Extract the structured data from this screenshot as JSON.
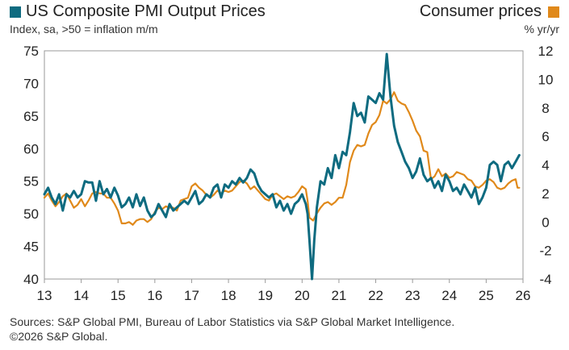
{
  "chart_data": {
    "type": "line",
    "title": "US Composite PMI Output Prices",
    "legend": [
      {
        "name": "US Composite PMI Output Prices",
        "color": "#0e6b80",
        "position": "top-left"
      },
      {
        "name": "Consumer prices",
        "color": "#e0891a",
        "position": "top-right"
      }
    ],
    "ylabel_left": "Index, sa, >50 = inflation m/m",
    "ylabel_right": "% yr/yr",
    "y_left": {
      "min": 40,
      "max": 75,
      "ticks": [
        40,
        45,
        50,
        55,
        60,
        65,
        70,
        75
      ]
    },
    "y_right": {
      "min": -4,
      "max": 12,
      "ticks": [
        -4,
        -2,
        0,
        2,
        4,
        6,
        8,
        10,
        12
      ]
    },
    "x": {
      "min": 13,
      "max": 26,
      "ticks": [
        "13",
        "14",
        "15",
        "16",
        "17",
        "18",
        "19",
        "20",
        "21",
        "22",
        "23",
        "24",
        "25",
        "26"
      ]
    },
    "series": [
      {
        "name": "US Composite PMI Output Prices",
        "axis": "left",
        "color": "#0e6b80",
        "points": [
          [
            13.0,
            53.0
          ],
          [
            13.1,
            54.0
          ],
          [
            13.2,
            52.5
          ],
          [
            13.3,
            51.5
          ],
          [
            13.4,
            53.0
          ],
          [
            13.5,
            50.5
          ],
          [
            13.6,
            53.0
          ],
          [
            13.7,
            52.5
          ],
          [
            13.8,
            53.5
          ],
          [
            13.9,
            52.5
          ],
          [
            14.0,
            53.0
          ],
          [
            14.1,
            55.0
          ],
          [
            14.2,
            54.8
          ],
          [
            14.3,
            54.8
          ],
          [
            14.4,
            52.0
          ],
          [
            14.5,
            55.0
          ],
          [
            14.6,
            53.0
          ],
          [
            14.7,
            53.8
          ],
          [
            14.8,
            52.5
          ],
          [
            14.9,
            54.0
          ],
          [
            15.0,
            52.8
          ],
          [
            15.1,
            51.0
          ],
          [
            15.2,
            51.5
          ],
          [
            15.3,
            52.5
          ],
          [
            15.4,
            51.0
          ],
          [
            15.5,
            53.0
          ],
          [
            15.6,
            51.2
          ],
          [
            15.7,
            52.5
          ],
          [
            15.8,
            50.5
          ],
          [
            15.9,
            49.5
          ],
          [
            16.0,
            50.0
          ],
          [
            16.1,
            51.5
          ],
          [
            16.2,
            50.5
          ],
          [
            16.3,
            49.5
          ],
          [
            16.4,
            51.5
          ],
          [
            16.5,
            50.5
          ],
          [
            16.6,
            51.0
          ],
          [
            16.7,
            51.5
          ],
          [
            16.8,
            52.0
          ],
          [
            16.9,
            51.5
          ],
          [
            17.0,
            52.5
          ],
          [
            17.1,
            53.5
          ],
          [
            17.2,
            51.5
          ],
          [
            17.3,
            52.0
          ],
          [
            17.4,
            53.0
          ],
          [
            17.5,
            52.5
          ],
          [
            17.6,
            54.0
          ],
          [
            17.7,
            54.5
          ],
          [
            17.8,
            52.5
          ],
          [
            17.9,
            54.5
          ],
          [
            18.0,
            54.0
          ],
          [
            18.1,
            55.0
          ],
          [
            18.2,
            54.5
          ],
          [
            18.3,
            55.5
          ],
          [
            18.4,
            54.8
          ],
          [
            18.5,
            55.5
          ],
          [
            18.6,
            56.8
          ],
          [
            18.7,
            56.2
          ],
          [
            18.8,
            54.5
          ],
          [
            18.9,
            53.5
          ],
          [
            19.0,
            53.0
          ],
          [
            19.1,
            52.5
          ],
          [
            19.2,
            53.0
          ],
          [
            19.3,
            51.0
          ],
          [
            19.4,
            52.0
          ],
          [
            19.5,
            50.5
          ],
          [
            19.6,
            51.5
          ],
          [
            19.7,
            50.0
          ],
          [
            19.8,
            51.5
          ],
          [
            19.9,
            52.0
          ],
          [
            20.0,
            53.0
          ],
          [
            20.1,
            51.5
          ],
          [
            20.15,
            50.0
          ],
          [
            20.2,
            46.0
          ],
          [
            20.27,
            40.0
          ],
          [
            20.33,
            46.0
          ],
          [
            20.4,
            51.0
          ],
          [
            20.5,
            55.0
          ],
          [
            20.6,
            54.5
          ],
          [
            20.7,
            57.0
          ],
          [
            20.8,
            55.5
          ],
          [
            20.9,
            59.0
          ],
          [
            21.0,
            57.0
          ],
          [
            21.1,
            59.5
          ],
          [
            21.2,
            59.0
          ],
          [
            21.3,
            62.5
          ],
          [
            21.4,
            67.0
          ],
          [
            21.5,
            65.0
          ],
          [
            21.6,
            65.5
          ],
          [
            21.7,
            64.0
          ],
          [
            21.8,
            68.0
          ],
          [
            21.9,
            67.5
          ],
          [
            22.0,
            67.0
          ],
          [
            22.1,
            68.5
          ],
          [
            22.2,
            67.5
          ],
          [
            22.3,
            74.5
          ],
          [
            22.4,
            68.0
          ],
          [
            22.5,
            63.5
          ],
          [
            22.6,
            61.0
          ],
          [
            22.7,
            59.5
          ],
          [
            22.8,
            58.0
          ],
          [
            22.9,
            57.0
          ],
          [
            23.0,
            55.5
          ],
          [
            23.1,
            56.5
          ],
          [
            23.2,
            58.5
          ],
          [
            23.3,
            56.0
          ],
          [
            23.4,
            55.0
          ],
          [
            23.5,
            55.5
          ],
          [
            23.6,
            54.0
          ],
          [
            23.7,
            55.0
          ],
          [
            23.8,
            53.5
          ],
          [
            23.9,
            56.0
          ],
          [
            24.0,
            55.0
          ],
          [
            24.1,
            53.5
          ],
          [
            24.2,
            54.0
          ],
          [
            24.3,
            53.0
          ],
          [
            24.4,
            54.5
          ],
          [
            24.5,
            53.5
          ],
          [
            24.6,
            52.5
          ],
          [
            24.7,
            54.0
          ],
          [
            24.8,
            51.5
          ],
          [
            24.9,
            52.5
          ],
          [
            25.0,
            54.0
          ],
          [
            25.1,
            57.5
          ],
          [
            25.2,
            58.0
          ],
          [
            25.3,
            57.5
          ],
          [
            25.4,
            55.0
          ],
          [
            25.5,
            57.5
          ],
          [
            25.6,
            58.0
          ],
          [
            25.7,
            57.0
          ],
          [
            25.8,
            58.0
          ],
          [
            25.9,
            59.0
          ]
        ]
      },
      {
        "name": "Consumer prices",
        "axis": "right",
        "color": "#e0891a",
        "points": [
          [
            13.0,
            1.7
          ],
          [
            13.1,
            2.0
          ],
          [
            13.2,
            1.5
          ],
          [
            13.3,
            1.1
          ],
          [
            13.4,
            1.4
          ],
          [
            13.5,
            1.8
          ],
          [
            13.6,
            2.0
          ],
          [
            13.7,
            1.5
          ],
          [
            13.8,
            1.0
          ],
          [
            13.9,
            1.2
          ],
          [
            14.0,
            1.6
          ],
          [
            14.1,
            1.1
          ],
          [
            14.2,
            1.5
          ],
          [
            14.3,
            2.0
          ],
          [
            14.4,
            2.1
          ],
          [
            14.5,
            2.0
          ],
          [
            14.6,
            2.0
          ],
          [
            14.7,
            1.7
          ],
          [
            14.8,
            1.7
          ],
          [
            14.9,
            1.3
          ],
          [
            15.0,
            0.8
          ],
          [
            15.1,
            -0.1
          ],
          [
            15.2,
            -0.1
          ],
          [
            15.3,
            0.0
          ],
          [
            15.4,
            -0.2
          ],
          [
            15.5,
            0.1
          ],
          [
            15.6,
            0.2
          ],
          [
            15.7,
            0.2
          ],
          [
            15.8,
            0.0
          ],
          [
            15.9,
            0.2
          ],
          [
            16.0,
            0.7
          ],
          [
            16.1,
            1.0
          ],
          [
            16.2,
            0.9
          ],
          [
            16.3,
            1.1
          ],
          [
            16.4,
            1.0
          ],
          [
            16.5,
            1.0
          ],
          [
            16.6,
            0.8
          ],
          [
            16.7,
            1.5
          ],
          [
            16.8,
            1.6
          ],
          [
            16.9,
            1.7
          ],
          [
            17.0,
            2.5
          ],
          [
            17.1,
            2.7
          ],
          [
            17.2,
            2.4
          ],
          [
            17.3,
            2.2
          ],
          [
            17.4,
            1.9
          ],
          [
            17.5,
            1.7
          ],
          [
            17.6,
            1.9
          ],
          [
            17.7,
            2.2
          ],
          [
            17.8,
            2.0
          ],
          [
            17.9,
            2.2
          ],
          [
            18.0,
            2.1
          ],
          [
            18.1,
            2.2
          ],
          [
            18.2,
            2.5
          ],
          [
            18.3,
            2.8
          ],
          [
            18.4,
            2.9
          ],
          [
            18.5,
            2.7
          ],
          [
            18.6,
            2.3
          ],
          [
            18.7,
            2.5
          ],
          [
            18.8,
            2.2
          ],
          [
            18.9,
            1.9
          ],
          [
            19.0,
            1.6
          ],
          [
            19.1,
            1.5
          ],
          [
            19.2,
            1.9
          ],
          [
            19.3,
            2.0
          ],
          [
            19.4,
            1.8
          ],
          [
            19.5,
            1.6
          ],
          [
            19.6,
            1.8
          ],
          [
            19.7,
            1.7
          ],
          [
            19.8,
            1.8
          ],
          [
            19.9,
            2.1
          ],
          [
            20.0,
            2.5
          ],
          [
            20.1,
            2.3
          ],
          [
            20.15,
            1.5
          ],
          [
            20.2,
            0.3
          ],
          [
            20.3,
            0.1
          ],
          [
            20.4,
            0.6
          ],
          [
            20.5,
            1.0
          ],
          [
            20.6,
            1.3
          ],
          [
            20.7,
            1.4
          ],
          [
            20.8,
            1.2
          ],
          [
            20.9,
            1.4
          ],
          [
            21.0,
            1.7
          ],
          [
            21.1,
            1.7
          ],
          [
            21.2,
            2.6
          ],
          [
            21.3,
            4.2
          ],
          [
            21.4,
            5.0
          ],
          [
            21.5,
            5.4
          ],
          [
            21.6,
            5.3
          ],
          [
            21.7,
            5.4
          ],
          [
            21.8,
            6.2
          ],
          [
            21.9,
            6.8
          ],
          [
            22.0,
            7.0
          ],
          [
            22.1,
            7.5
          ],
          [
            22.2,
            8.5
          ],
          [
            22.3,
            8.3
          ],
          [
            22.4,
            8.6
          ],
          [
            22.5,
            9.1
          ],
          [
            22.6,
            8.5
          ],
          [
            22.7,
            8.3
          ],
          [
            22.8,
            8.2
          ],
          [
            22.9,
            7.7
          ],
          [
            23.0,
            7.1
          ],
          [
            23.1,
            6.4
          ],
          [
            23.2,
            6.0
          ],
          [
            23.3,
            5.0
          ],
          [
            23.4,
            4.9
          ],
          [
            23.5,
            3.0
          ],
          [
            23.6,
            3.2
          ],
          [
            23.7,
            3.7
          ],
          [
            23.8,
            3.2
          ],
          [
            23.9,
            3.4
          ],
          [
            24.0,
            3.1
          ],
          [
            24.1,
            3.2
          ],
          [
            24.2,
            3.5
          ],
          [
            24.3,
            3.4
          ],
          [
            24.4,
            3.3
          ],
          [
            24.5,
            3.0
          ],
          [
            24.6,
            2.9
          ],
          [
            24.7,
            2.5
          ],
          [
            24.8,
            2.4
          ],
          [
            24.9,
            2.6
          ],
          [
            25.0,
            2.9
          ],
          [
            25.1,
            3.0
          ],
          [
            25.2,
            2.8
          ],
          [
            25.3,
            2.4
          ],
          [
            25.4,
            2.3
          ],
          [
            25.5,
            2.4
          ],
          [
            25.6,
            2.7
          ],
          [
            25.7,
            2.9
          ],
          [
            25.8,
            3.0
          ],
          [
            25.85,
            2.4
          ],
          [
            25.9,
            2.4
          ]
        ]
      }
    ]
  },
  "source_text": "Sources: S&P Global PMI, Bureau of Labor Statistics via S&P Global Market Intelligence.",
  "copyright_text": "©2026 S&P Global."
}
